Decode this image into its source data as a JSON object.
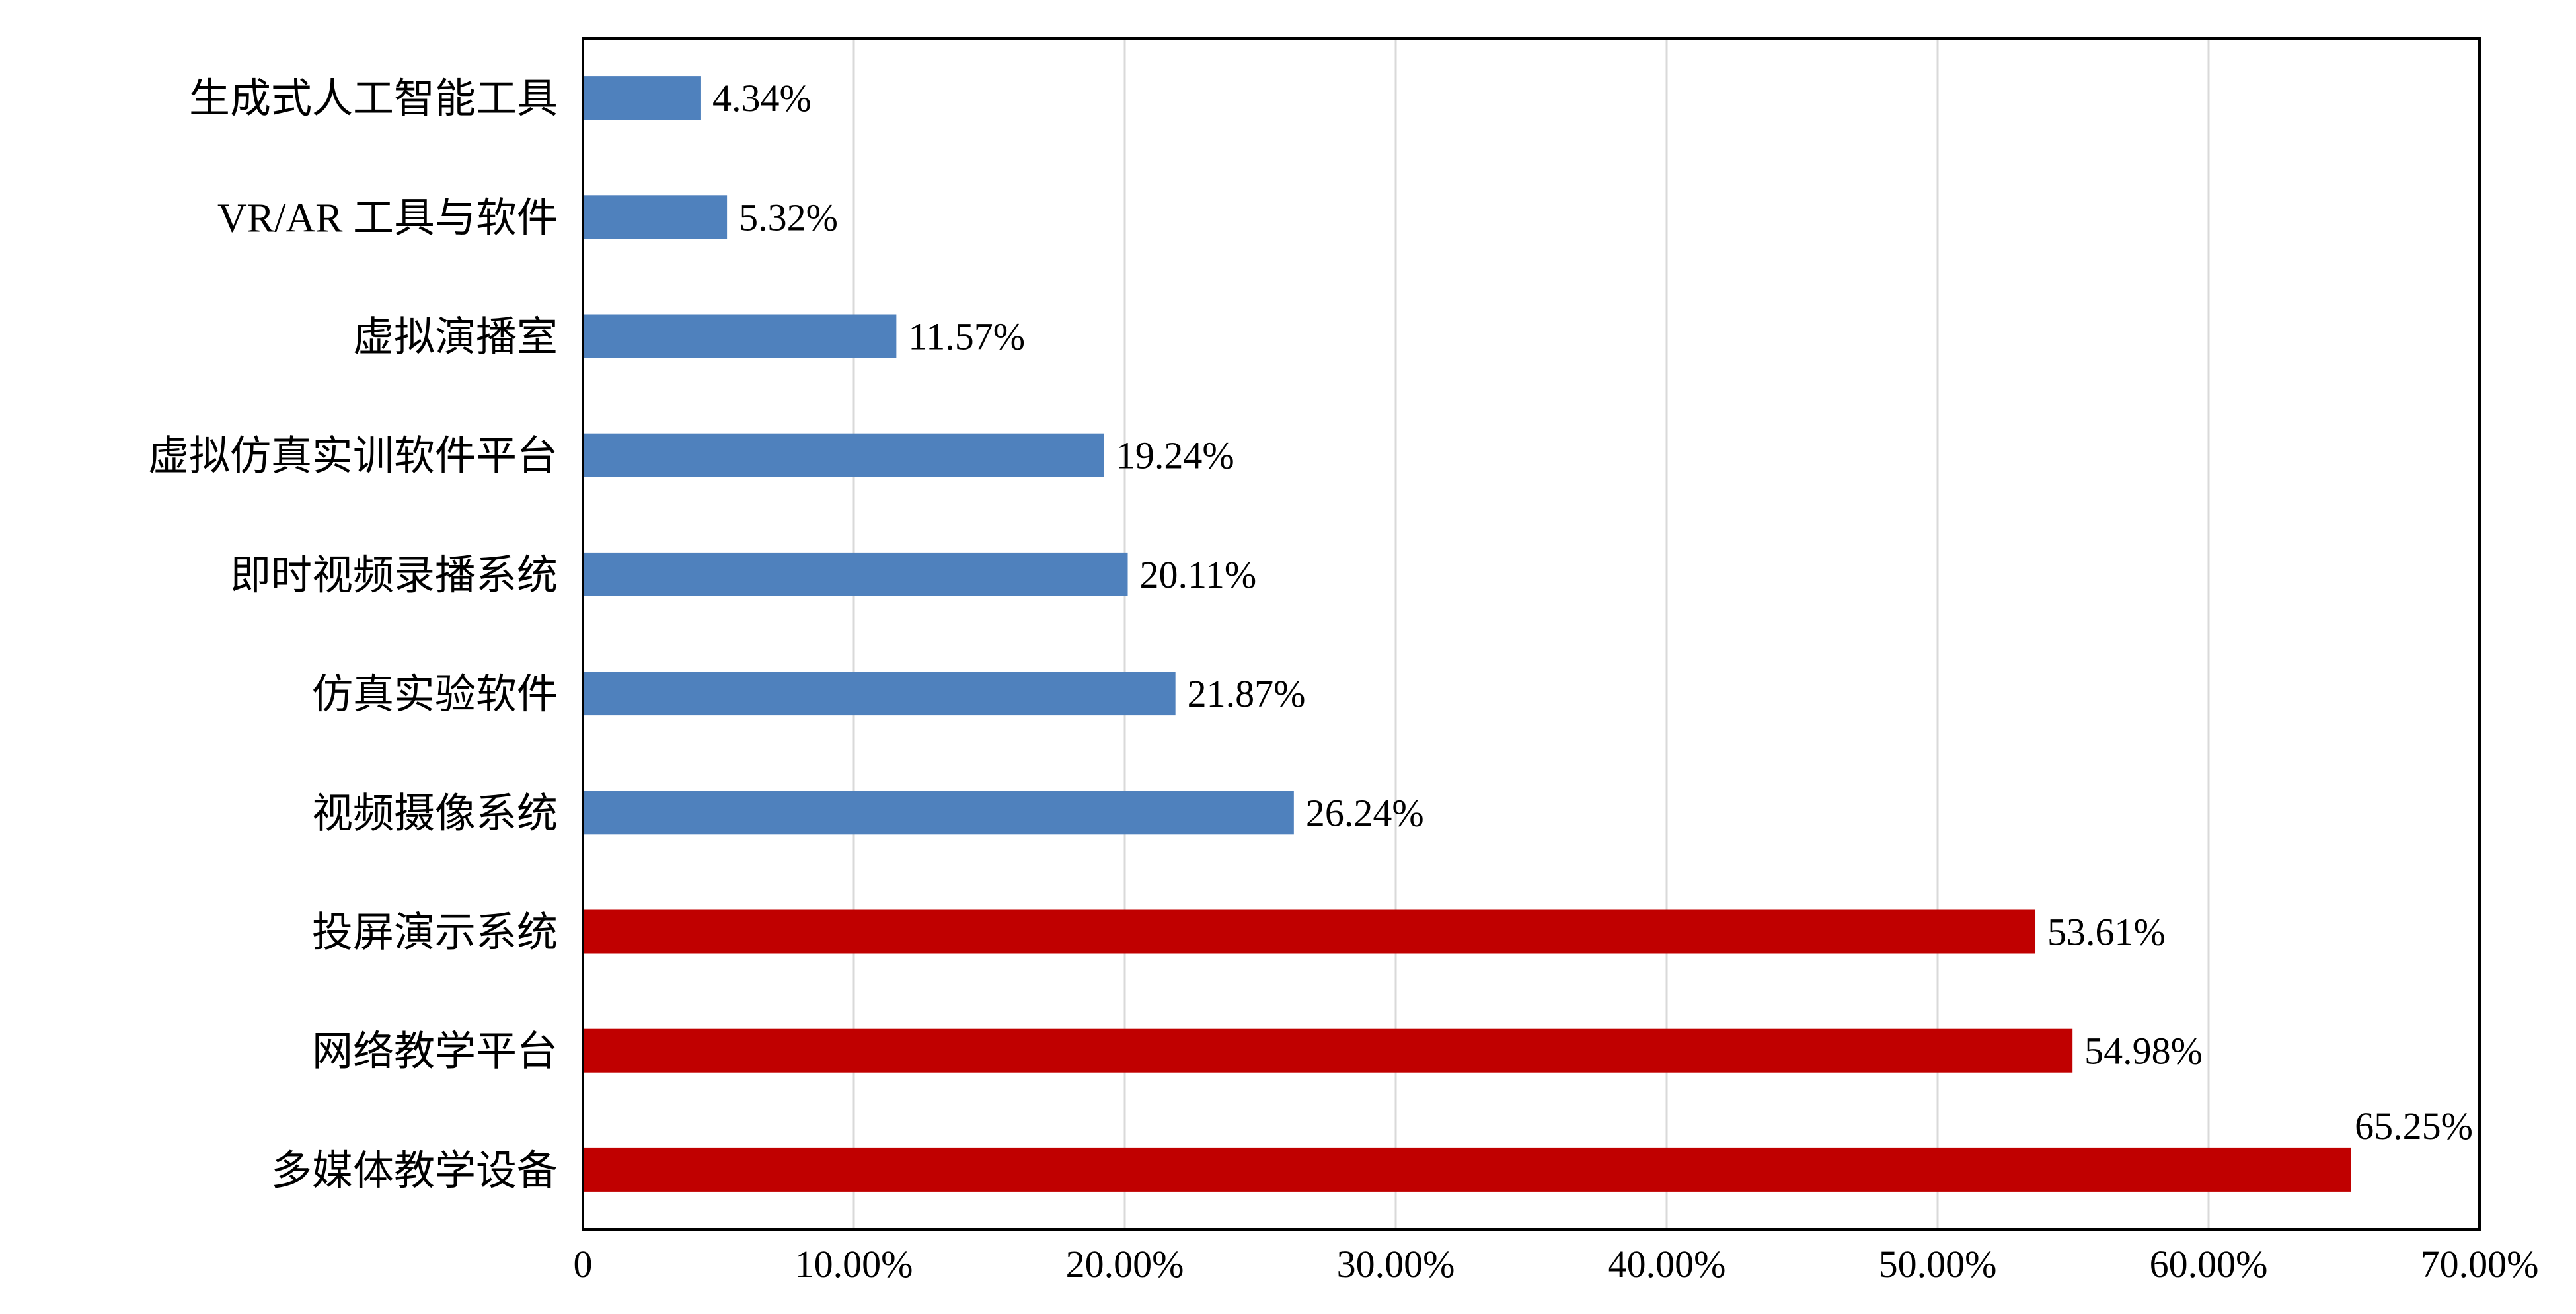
{
  "chart_data": {
    "type": "bar",
    "orientation": "horizontal",
    "categories": [
      "生成式人工智能工具",
      "VR/AR 工具与软件",
      "虚拟演播室",
      "虚拟仿真实训软件平台",
      "即时视频录播系统",
      "仿真实验软件",
      "视频摄像系统",
      "投屏演示系统",
      "网络教学平台",
      "多媒体教学设备"
    ],
    "values": [
      4.34,
      5.32,
      11.57,
      19.24,
      20.11,
      21.87,
      26.24,
      53.61,
      54.98,
      65.25
    ],
    "value_labels": [
      "4.34%",
      "5.32%",
      "11.57%",
      "19.24%",
      "20.11%",
      "21.87%",
      "26.24%",
      "53.61%",
      "54.98%",
      "65.25%"
    ],
    "bar_colors": [
      "#4F81BD",
      "#4F81BD",
      "#4F81BD",
      "#4F81BD",
      "#4F81BD",
      "#4F81BD",
      "#4F81BD",
      "#C00000",
      "#C00000",
      "#C00000"
    ],
    "xlim": [
      0,
      70
    ],
    "x_ticks": [
      0,
      10,
      20,
      30,
      40,
      50,
      60,
      70
    ],
    "x_tick_labels": [
      "0",
      "10.00%",
      "20.00%",
      "30.00%",
      "40.00%",
      "50.00%",
      "60.00%",
      "70.00%"
    ],
    "title": "",
    "xlabel": "",
    "ylabel": "",
    "grid": true,
    "legend": "none",
    "plot_border": true
  },
  "colors": {
    "gridline": "#D9D9D9",
    "border": "#000000"
  }
}
